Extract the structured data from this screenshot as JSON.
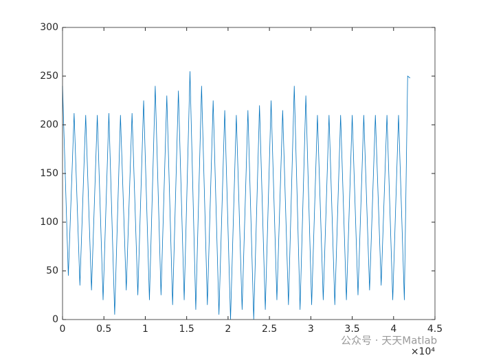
{
  "chart_data": {
    "type": "line",
    "x": [
      0,
      700,
      1400,
      2100,
      2800,
      3500,
      4200,
      4900,
      5600,
      6300,
      7000,
      7700,
      8400,
      9100,
      9800,
      10500,
      11200,
      11900,
      12600,
      13300,
      14000,
      14700,
      15400,
      16100,
      16800,
      17500,
      18200,
      18900,
      19600,
      20300,
      21000,
      21700,
      22400,
      23100,
      23800,
      24500,
      25200,
      25900,
      26600,
      27300,
      28000,
      28700,
      29400,
      30100,
      30800,
      31500,
      32200,
      32900,
      33600,
      34300,
      35000,
      35700,
      36400,
      37100,
      37800,
      38500,
      39200,
      39900,
      40600,
      41300,
      41700,
      42000
    ],
    "series": [
      {
        "color": "#0072bd",
        "values": [
          240,
          45,
          212,
          35,
          210,
          30,
          210,
          20,
          212,
          5,
          210,
          30,
          212,
          25,
          225,
          20,
          240,
          25,
          230,
          15,
          235,
          20,
          255,
          10,
          240,
          15,
          225,
          5,
          215,
          0,
          210,
          10,
          215,
          0,
          220,
          10,
          225,
          20,
          215,
          15,
          240,
          10,
          230,
          15,
          210,
          20,
          210,
          15,
          210,
          20,
          210,
          25,
          210,
          30,
          210,
          35,
          210,
          20,
          210,
          20,
          250,
          248
        ]
      }
    ],
    "xlim": [
      0,
      45000
    ],
    "xticks": [
      0,
      {
        "value": 5000,
        "label": "0.5"
      },
      {
        "value": 10000,
        "label": "1"
      },
      {
        "value": 15000,
        "label": "1.5"
      },
      {
        "value": 20000,
        "label": "2"
      },
      {
        "value": 25000,
        "label": "2.5"
      },
      {
        "value": 30000,
        "label": "3"
      },
      {
        "value": 35000,
        "label": "3.5"
      },
      {
        "value": 40000,
        "label": "4"
      },
      {
        "value": 45000,
        "label": "4.5"
      }
    ],
    "x_multiplier": "×10⁴",
    "ylim": [
      0,
      300
    ],
    "yticks": [
      0,
      50,
      100,
      150,
      200,
      250,
      300
    ],
    "watermark": "公众号 · 天天Matlab"
  }
}
